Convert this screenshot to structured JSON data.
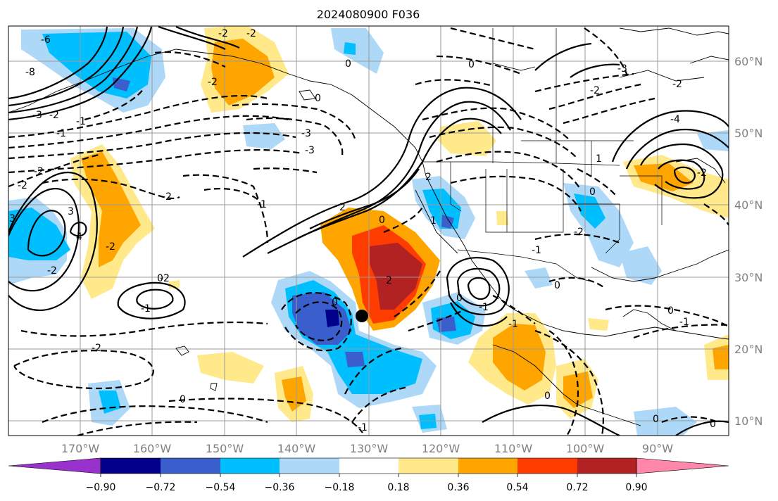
{
  "title": "2024080900 F036",
  "map": {
    "lon_labels": [
      "170°W",
      "160°W",
      "150°W",
      "140°W",
      "130°W",
      "120°W",
      "110°W",
      "100°W",
      "90°W"
    ],
    "lat_labels": [
      "60°N",
      "50°N",
      "40°N",
      "30°N",
      "20°N",
      "10°N"
    ],
    "marker": {
      "lon": -130.8,
      "lat": 24.6,
      "color": "#000000"
    },
    "contour_labels": [
      "-6",
      "-8",
      "-3",
      "-2",
      "-1",
      "-1",
      "-2",
      "-2",
      "-3",
      "0",
      "-1",
      "-2",
      "-3",
      "-2",
      "-2",
      "-2",
      "0",
      "-2",
      "-2",
      "-3",
      "3",
      "4",
      "-2",
      "0",
      "-1",
      "2",
      "0",
      "2",
      "-2",
      "0",
      "0",
      "2",
      "0",
      "1",
      "-1",
      "-1",
      "0",
      "0",
      "-3",
      "-2",
      "1",
      "-2",
      "0",
      "-1",
      "-4",
      "-2",
      "0",
      "-2",
      "-1",
      "0",
      "0",
      "0",
      "-1"
    ]
  },
  "colorbar": {
    "levels": [
      "−0.90",
      "−0.72",
      "−0.54",
      "−0.36",
      "−0.18",
      "0.18",
      "0.36",
      "0.54",
      "0.72",
      "0.90"
    ],
    "colors": [
      "#9932cc",
      "#00008b",
      "#3a5fcd",
      "#00bfff",
      "#add8f7",
      "#ffffff",
      "#ffe98a",
      "#ffa500",
      "#ff3c00",
      "#b22222",
      "#ff88aa"
    ]
  }
}
